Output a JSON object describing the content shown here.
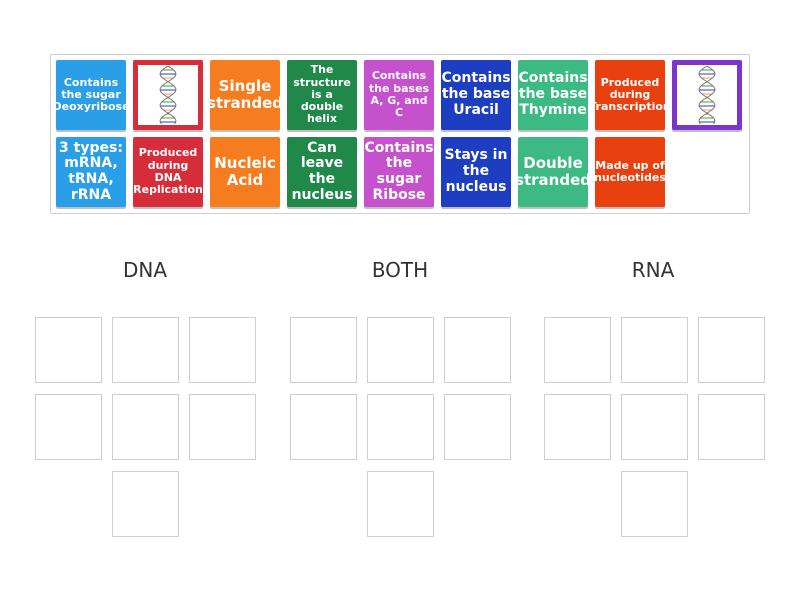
{
  "tiles": [
    [
      {
        "text": "Contains the sugar Deoxyribose",
        "color": "#2a9ee6"
      },
      {
        "color": "#d62d3a"
      },
      {
        "text": "Single stranded",
        "color": "#f57c1f"
      },
      {
        "text": "The structure is a double helix",
        "color": "#20894a"
      },
      {
        "text": "Contains the bases A, G, and C",
        "color": "#c651cc"
      },
      {
        "text": "Contains the base Uracil",
        "color": "#1d3ec0"
      },
      {
        "text": "Contains the base Thymine",
        "color": "#3dba84"
      },
      {
        "text": "Produced during Transcription",
        "color": "#e8410f"
      },
      {
        "color": "#7b35c9"
      }
    ],
    [
      {
        "text": "3 types: mRNA, tRNA, rRNA",
        "color": "#2a9ee6"
      },
      {
        "text": "Produced during DNA Replication",
        "color": "#d62d3a"
      },
      {
        "text": "Nucleic Acid",
        "color": "#f57c1f"
      },
      {
        "text": "Can leave the nucleus",
        "color": "#20894a"
      },
      {
        "text": "Contains the sugar Ribose",
        "color": "#c651cc"
      },
      {
        "text": "Stays in the nucleus",
        "color": "#1d3ec0"
      },
      {
        "text": "Double stranded",
        "color": "#3dba84"
      },
      {
        "text": "Made up of nucleotides",
        "color": "#e8410f"
      }
    ]
  ],
  "groups": [
    "DNA",
    "BOTH",
    "RNA"
  ]
}
